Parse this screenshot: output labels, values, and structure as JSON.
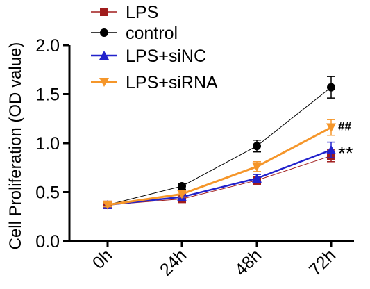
{
  "chart_data": {
    "type": "line",
    "ylabel": "Cell Proliferation (OD value)",
    "xlabel": "",
    "categories": [
      "0h",
      "24h",
      "48h",
      "72h"
    ],
    "ylim": [
      0,
      2.0
    ],
    "yticks": [
      "0.0",
      "0.5",
      "1.0",
      "1.5",
      "2.0"
    ],
    "legend_position": "top-left",
    "grid": false,
    "series": [
      {
        "name": "LPS",
        "values": [
          0.37,
          0.43,
          0.62,
          0.87
        ],
        "errors": [
          0.02,
          0.03,
          0.04,
          0.06
        ],
        "color": "#a01c1c",
        "marker": "square",
        "line_width": 1
      },
      {
        "name": "control",
        "values": [
          0.37,
          0.56,
          0.97,
          1.57
        ],
        "errors": [
          0.02,
          0.03,
          0.06,
          0.11
        ],
        "color": "#000000",
        "marker": "circle",
        "line_width": 1
      },
      {
        "name": "LPS+siNC",
        "values": [
          0.37,
          0.45,
          0.64,
          0.93
        ],
        "errors": [
          0.02,
          0.03,
          0.04,
          0.08
        ],
        "color": "#2222cc",
        "marker": "triangle-up",
        "line_width": 2.5
      },
      {
        "name": "LPS+siRNA",
        "values": [
          0.37,
          0.48,
          0.76,
          1.16
        ],
        "errors": [
          0.02,
          0.03,
          0.05,
          0.08
        ],
        "color": "#f5962a",
        "marker": "triangle-down",
        "line_width": 3
      }
    ],
    "annotations": [
      {
        "text": "##",
        "category": "72h",
        "value": 1.16
      },
      {
        "text": "**",
        "category": "72h",
        "value": 0.93
      }
    ]
  }
}
